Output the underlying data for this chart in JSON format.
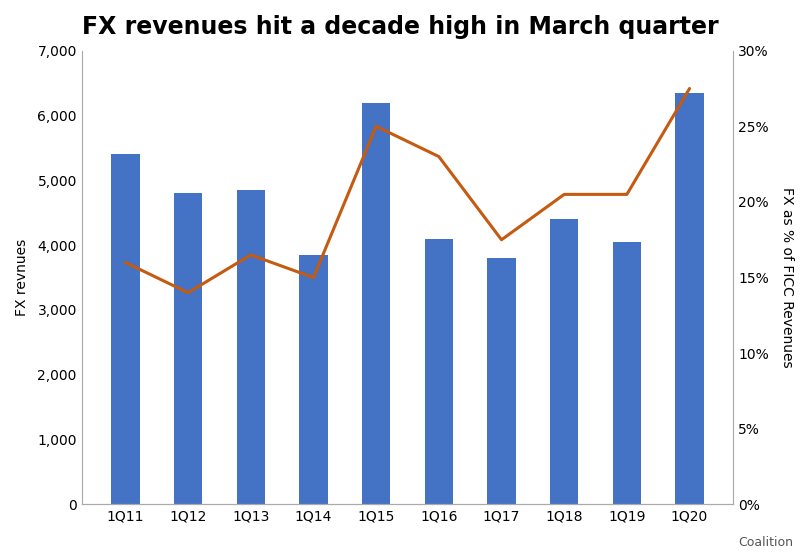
{
  "title": "FX revenues hit a decade high in March quarter",
  "categories": [
    "1Q11",
    "1Q12",
    "1Q13",
    "1Q14",
    "1Q15",
    "1Q16",
    "1Q17",
    "1Q18",
    "1Q19",
    "1Q20"
  ],
  "bar_values": [
    5400,
    4800,
    4850,
    3850,
    6200,
    4100,
    3800,
    4400,
    4050,
    6350
  ],
  "line_values": [
    16.0,
    14.0,
    16.5,
    15.0,
    25.0,
    23.0,
    17.5,
    20.5,
    20.5,
    27.5
  ],
  "bar_color": "#4472C4",
  "line_color": "#C55A11",
  "left_ylabel": "FX revnues",
  "right_ylabel": "FX as % of FICC Revenues",
  "left_ylim": [
    0,
    7000
  ],
  "right_ylim": [
    0,
    30
  ],
  "left_yticks": [
    0,
    1000,
    2000,
    3000,
    4000,
    5000,
    6000,
    7000
  ],
  "right_yticks": [
    0,
    5,
    10,
    15,
    20,
    25,
    30
  ],
  "right_yticklabels": [
    "0%",
    "5%",
    "10%",
    "15%",
    "20%",
    "25%",
    "30%"
  ],
  "source_label": "Coalition",
  "background_color": "#FFFFFF",
  "title_fontsize": 17,
  "axis_label_fontsize": 10,
  "tick_fontsize": 10,
  "line_width": 2.2,
  "bar_width": 0.45
}
